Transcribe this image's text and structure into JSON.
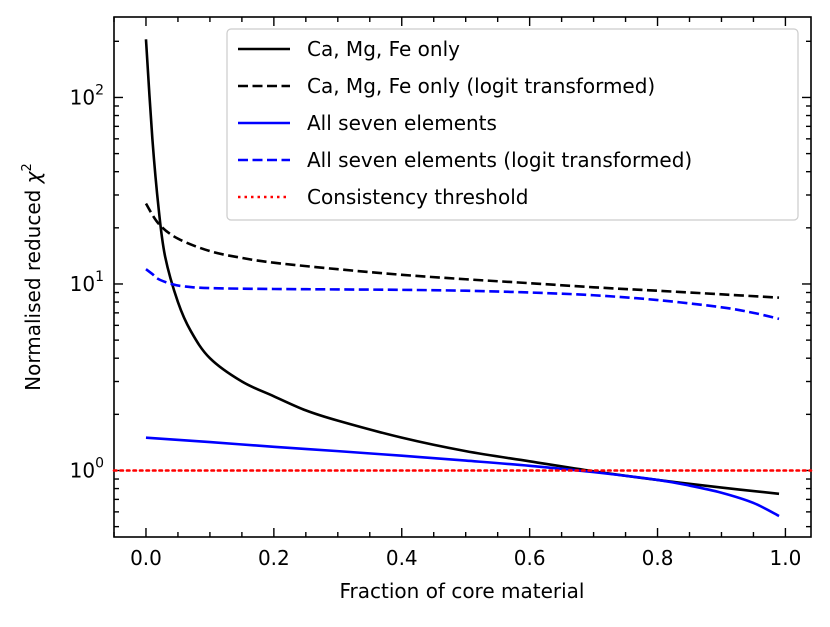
{
  "chart_data": {
    "type": "line",
    "title": "",
    "xlabel": "Fraction of core material",
    "ylabel_prefix": "Normalised reduced ",
    "ylabel_symbol": "χ",
    "ylabel_superscript": "2",
    "xscale": "linear",
    "yscale": "log",
    "xlim": [
      -0.05,
      1.04
    ],
    "ylim": [
      0.44,
      270
    ],
    "grid": false,
    "legend_position": "top-right",
    "x_ticks": [
      {
        "value": 0.0,
        "label": "0.0"
      },
      {
        "value": 0.2,
        "label": "0.2"
      },
      {
        "value": 0.4,
        "label": "0.4"
      },
      {
        "value": 0.6,
        "label": "0.6"
      },
      {
        "value": 0.8,
        "label": "0.8"
      },
      {
        "value": 1.0,
        "label": "1.0"
      }
    ],
    "y_ticks": [
      {
        "value": 1,
        "base": "10",
        "exponent": "0"
      },
      {
        "value": 10,
        "base": "10",
        "exponent": "1"
      },
      {
        "value": 100,
        "base": "10",
        "exponent": "2"
      }
    ],
    "series": [
      {
        "name": "Ca, Mg, Fe only",
        "color": "#000000",
        "dash": "solid",
        "x": [
          0.0,
          0.01,
          0.02,
          0.03,
          0.05,
          0.07,
          0.1,
          0.15,
          0.2,
          0.25,
          0.3,
          0.4,
          0.5,
          0.6,
          0.7,
          0.8,
          0.9,
          0.99
        ],
        "y": [
          205,
          60,
          25,
          14,
          8,
          5.6,
          4.0,
          3.0,
          2.5,
          2.1,
          1.85,
          1.5,
          1.27,
          1.12,
          0.99,
          0.89,
          0.81,
          0.75
        ]
      },
      {
        "name": "Ca, Mg, Fe only (logit transformed)",
        "color": "#000000",
        "dash": "dashed",
        "x": [
          0.0,
          0.02,
          0.05,
          0.1,
          0.15,
          0.2,
          0.3,
          0.4,
          0.5,
          0.6,
          0.7,
          0.8,
          0.9,
          0.99
        ],
        "y": [
          27,
          21,
          17.5,
          15,
          13.8,
          13,
          12,
          11.2,
          10.6,
          10.1,
          9.6,
          9.2,
          8.8,
          8.45
        ]
      },
      {
        "name": "All seven elements",
        "color": "#0000ff",
        "dash": "solid",
        "x": [
          0.0,
          0.1,
          0.2,
          0.3,
          0.4,
          0.5,
          0.6,
          0.7,
          0.8,
          0.85,
          0.9,
          0.95,
          0.99
        ],
        "y": [
          1.5,
          1.42,
          1.34,
          1.27,
          1.2,
          1.13,
          1.06,
          0.98,
          0.89,
          0.83,
          0.76,
          0.67,
          0.57
        ]
      },
      {
        "name": "All seven elements (logit transformed)",
        "color": "#0000ff",
        "dash": "dashed",
        "x": [
          0.0,
          0.01,
          0.02,
          0.04,
          0.06,
          0.1,
          0.2,
          0.3,
          0.4,
          0.5,
          0.6,
          0.7,
          0.8,
          0.9,
          0.95,
          0.99
        ],
        "y": [
          12,
          11.3,
          10.6,
          10.0,
          9.7,
          9.5,
          9.4,
          9.35,
          9.3,
          9.2,
          9.0,
          8.7,
          8.2,
          7.5,
          7.0,
          6.5
        ]
      },
      {
        "name": "Consistency threshold",
        "color": "#ff0000",
        "dash": "dotted",
        "x": [
          -0.05,
          1.04
        ],
        "y": [
          1.0,
          1.0
        ]
      }
    ]
  }
}
